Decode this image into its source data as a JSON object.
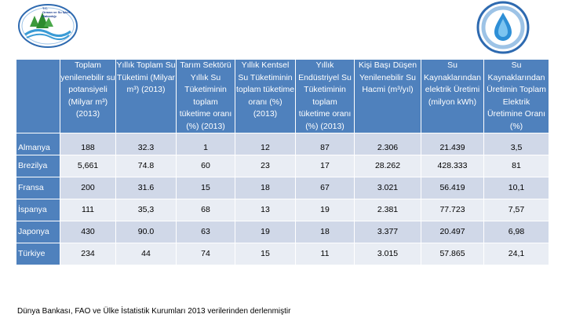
{
  "logo_left": {
    "line1": "T.C.",
    "line2": "Orman ve Su İşleri",
    "line3": "Bakanlığı"
  },
  "headers": [
    "",
    "Toplam yenilenebilir su potansiyeli (Milyar m³) (2013)",
    "Yıllık Toplam Su Tüketimi (Milyar m³) (2013)",
    "Tarım Sektörü Yıllık Su Tüketiminin toplam tüketime oranı (%) (2013)",
    "Yıllık Kentsel Su Tüketiminin toplam tüketime oranı (%) (2013)",
    "Yıllık Endüstriyel Su Tüketiminin toplam tüketime oranı (%) (2013)",
    "Kişi Başı Düşen Yenilenebilir Su Hacmi (m³/yıl)",
    "Su Kaynaklarından elektrik Üretimi (milyon kWh)",
    "Su Kaynaklarından Üretimin Toplam Elektrik Üretimine Oranı (%)"
  ],
  "rows": [
    [
      "Almanya",
      "188",
      "32.3",
      "1",
      "12",
      "87",
      "2.306",
      "21.439",
      "3,5"
    ],
    [
      "Brezilya",
      "5,661",
      "74.8",
      "60",
      "23",
      "17",
      "28.262",
      "428.333",
      "81"
    ],
    [
      "Fransa",
      "200",
      "31.6",
      "15",
      "18",
      "67",
      "3.021",
      "56.419",
      "10,1"
    ],
    [
      "İspanya",
      "111",
      "35,3",
      "68",
      "13",
      "19",
      "2.381",
      "77.723",
      "7,57"
    ],
    [
      "Japonya",
      "430",
      "90.0",
      "63",
      "19",
      "18",
      "3.377",
      "20.497",
      "6,98"
    ],
    [
      "Türkiye",
      "234",
      "44",
      "74",
      "15",
      "11",
      "3.015",
      "57.865",
      "24,1"
    ]
  ],
  "source": "Dünya Bankası, FAO ve Ülke İstatistik Kurumları 2013 verilerinden derlenmiştir",
  "colors": {
    "header_bg": "#4f81bd",
    "row_odd": "#d0d8e8",
    "row_even": "#e9edf4"
  }
}
